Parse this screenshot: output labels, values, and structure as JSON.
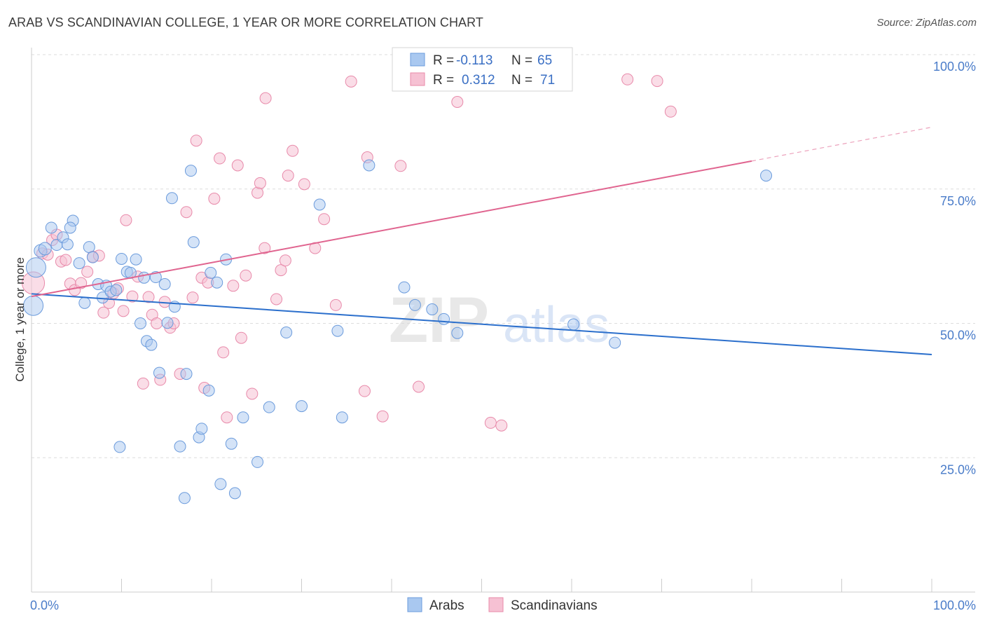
{
  "header": {
    "title": "ARAB VS SCANDINAVIAN COLLEGE, 1 YEAR OR MORE CORRELATION CHART",
    "source": "Source: ZipAtlas.com"
  },
  "watermark": {
    "zip": "ZIP",
    "atlas": "atlas"
  },
  "colors": {
    "arabs_fill": "#a9c8f0",
    "arabs_stroke": "#6b9bdc",
    "arabs_line": "#2b6fcc",
    "scand_fill": "#f6c1d3",
    "scand_stroke": "#e88aaa",
    "scand_line": "#e0648f",
    "tick_color": "#4a7cc9",
    "grid": "#dddddd"
  },
  "legend": {
    "rows": [
      {
        "r_label": "R =",
        "r_value": "-0.113",
        "n_label": "N =",
        "n_value": "65"
      },
      {
        "r_label": "R =",
        "r_value": "0.312",
        "n_label": "N =",
        "n_value": "71"
      }
    ]
  },
  "chart_data": {
    "type": "scatter",
    "title": "ARAB VS SCANDINAVIAN COLLEGE, 1 YEAR OR MORE CORRELATION CHART",
    "ylabel": "College, 1 year or more",
    "xlabel": "",
    "x_tick_labels": [
      "0.0%",
      "100.0%"
    ],
    "y_tick_labels": [
      "25.0%",
      "50.0%",
      "75.0%",
      "100.0%"
    ],
    "y_ticks": [
      25,
      50,
      75,
      100
    ],
    "xlim": [
      0,
      100
    ],
    "ylim": [
      0,
      100
    ],
    "grid": true,
    "legend_position": "top-center",
    "series": [
      {
        "name": "Arabs",
        "R": -0.113,
        "N": 65,
        "trend": {
          "x": [
            0,
            100
          ],
          "y": [
            55.5,
            44.2
          ]
        },
        "points": [
          [
            0.2,
            53.3,
            14
          ],
          [
            0.5,
            60.4,
            14
          ],
          [
            1.0,
            63.5,
            9
          ],
          [
            1.5,
            63.9,
            9
          ],
          [
            2.2,
            67.8,
            8
          ],
          [
            2.8,
            64.6,
            8
          ],
          [
            3.5,
            66.0,
            8
          ],
          [
            4.0,
            64.7,
            8
          ],
          [
            4.6,
            69.1,
            8
          ],
          [
            4.3,
            67.8,
            8
          ],
          [
            5.3,
            61.2,
            8
          ],
          [
            5.9,
            53.8,
            8
          ],
          [
            6.4,
            64.2,
            8
          ],
          [
            6.8,
            62.3,
            8
          ],
          [
            7.4,
            57.3,
            8
          ],
          [
            7.9,
            54.8,
            8
          ],
          [
            8.3,
            57.0,
            8
          ],
          [
            8.8,
            55.9,
            8
          ],
          [
            9.4,
            56.2,
            8
          ],
          [
            10.0,
            62.0,
            8
          ],
          [
            10.6,
            59.6,
            8
          ],
          [
            11.0,
            59.4,
            8
          ],
          [
            11.6,
            61.9,
            8
          ],
          [
            12.1,
            50.0,
            8
          ],
          [
            12.8,
            46.7,
            8
          ],
          [
            13.3,
            46.0,
            8
          ],
          [
            12.5,
            58.5,
            8
          ],
          [
            13.8,
            58.6,
            8
          ],
          [
            14.2,
            40.8,
            8
          ],
          [
            14.8,
            57.3,
            8
          ],
          [
            15.1,
            50.1,
            8
          ],
          [
            15.6,
            73.3,
            8
          ],
          [
            15.9,
            53.1,
            8
          ],
          [
            16.5,
            27.1,
            8
          ],
          [
            17.0,
            17.5,
            8
          ],
          [
            17.2,
            40.6,
            8
          ],
          [
            17.7,
            78.4,
            8
          ],
          [
            18.0,
            65.1,
            8
          ],
          [
            18.6,
            28.8,
            8
          ],
          [
            18.9,
            30.4,
            8
          ],
          [
            19.7,
            37.5,
            8
          ],
          [
            19.9,
            59.4,
            8
          ],
          [
            20.6,
            57.6,
            8
          ],
          [
            21.0,
            20.1,
            8
          ],
          [
            21.6,
            61.9,
            8
          ],
          [
            22.2,
            27.6,
            8
          ],
          [
            22.6,
            18.4,
            8
          ],
          [
            23.5,
            32.5,
            8
          ],
          [
            25.1,
            24.2,
            8
          ],
          [
            26.4,
            34.4,
            8
          ],
          [
            28.3,
            48.3,
            8
          ],
          [
            30.0,
            34.6,
            8
          ],
          [
            32.0,
            72.1,
            8
          ],
          [
            34.0,
            48.6,
            8
          ],
          [
            34.5,
            32.5,
            8
          ],
          [
            37.5,
            79.4,
            8
          ],
          [
            41.4,
            56.7,
            8
          ],
          [
            42.6,
            53.4,
            8
          ],
          [
            44.5,
            52.6,
            8
          ],
          [
            45.8,
            50.8,
            8
          ],
          [
            47.3,
            48.2,
            8
          ],
          [
            60.2,
            49.8,
            8
          ],
          [
            64.8,
            46.4,
            8
          ],
          [
            81.6,
            77.5,
            8
          ],
          [
            9.8,
            27.0,
            8
          ]
        ]
      },
      {
        "name": "Scandinavians",
        "R": 0.312,
        "N": 71,
        "trend": {
          "x": [
            0,
            80
          ],
          "y": [
            55.0,
            80.2
          ]
        },
        "trend_ext": {
          "x": [
            80,
            100
          ],
          "y": [
            80.2,
            86.5
          ]
        },
        "points": [
          [
            0.2,
            57.5,
            16
          ],
          [
            1.2,
            63.0,
            8
          ],
          [
            1.8,
            62.8,
            8
          ],
          [
            2.3,
            65.5,
            8
          ],
          [
            2.8,
            66.5,
            8
          ],
          [
            3.3,
            61.5,
            8
          ],
          [
            3.8,
            61.8,
            8
          ],
          [
            4.3,
            57.4,
            8
          ],
          [
            4.8,
            56.2,
            8
          ],
          [
            5.5,
            57.5,
            8
          ],
          [
            6.2,
            59.6,
            8
          ],
          [
            6.8,
            62.4,
            8
          ],
          [
            7.5,
            62.6,
            8
          ],
          [
            8.0,
            52.0,
            8
          ],
          [
            8.6,
            53.8,
            8
          ],
          [
            9.1,
            55.6,
            8
          ],
          [
            9.6,
            56.5,
            8
          ],
          [
            10.2,
            52.3,
            8
          ],
          [
            10.5,
            69.2,
            8
          ],
          [
            11.2,
            55.0,
            8
          ],
          [
            11.8,
            58.7,
            8
          ],
          [
            12.4,
            38.8,
            8
          ],
          [
            13.0,
            54.9,
            8
          ],
          [
            13.4,
            51.6,
            8
          ],
          [
            13.9,
            50.0,
            8
          ],
          [
            14.3,
            39.5,
            8
          ],
          [
            14.8,
            54.0,
            8
          ],
          [
            15.4,
            49.2,
            8
          ],
          [
            15.8,
            50.0,
            8
          ],
          [
            16.5,
            40.6,
            8
          ],
          [
            17.2,
            70.7,
            8
          ],
          [
            17.9,
            54.8,
            8
          ],
          [
            18.3,
            84.0,
            8
          ],
          [
            18.9,
            58.5,
            8
          ],
          [
            19.2,
            38.0,
            8
          ],
          [
            19.6,
            57.6,
            8
          ],
          [
            20.3,
            73.2,
            8
          ],
          [
            20.9,
            80.7,
            8
          ],
          [
            21.3,
            44.6,
            8
          ],
          [
            21.7,
            32.5,
            8
          ],
          [
            22.4,
            57.0,
            8
          ],
          [
            22.9,
            79.4,
            8
          ],
          [
            23.3,
            47.3,
            8
          ],
          [
            23.8,
            58.9,
            8
          ],
          [
            24.5,
            36.9,
            8
          ],
          [
            25.1,
            74.3,
            8
          ],
          [
            25.4,
            76.1,
            8
          ],
          [
            25.9,
            64.0,
            8
          ],
          [
            26.0,
            91.9,
            8
          ],
          [
            27.2,
            54.5,
            8
          ],
          [
            27.7,
            59.9,
            8
          ],
          [
            28.2,
            61.7,
            8
          ],
          [
            28.5,
            77.5,
            8
          ],
          [
            29.0,
            82.1,
            8
          ],
          [
            30.3,
            75.9,
            8
          ],
          [
            31.5,
            64.0,
            8
          ],
          [
            32.5,
            69.4,
            8
          ],
          [
            33.8,
            53.4,
            8
          ],
          [
            35.5,
            95.0,
            8
          ],
          [
            37.0,
            37.4,
            8
          ],
          [
            37.3,
            80.9,
            8
          ],
          [
            39.0,
            32.7,
            8
          ],
          [
            41.0,
            79.3,
            8
          ],
          [
            43.0,
            38.2,
            8
          ],
          [
            47.3,
            91.2,
            8
          ],
          [
            47.0,
            99.7,
            8
          ],
          [
            51.0,
            31.5,
            8
          ],
          [
            52.2,
            31.0,
            8
          ],
          [
            66.2,
            95.4,
            8
          ],
          [
            69.5,
            95.1,
            8
          ],
          [
            71.0,
            89.4,
            8
          ]
        ]
      }
    ]
  }
}
